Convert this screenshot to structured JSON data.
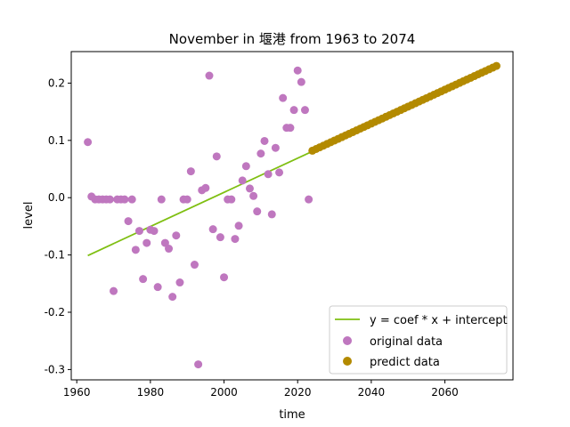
{
  "chart_data": {
    "type": "scatter",
    "title": "November in 堰港 from 1963 to 2074",
    "xlabel": "time",
    "ylabel": "level",
    "xlim": [
      1958.5,
      2078.5
    ],
    "ylim": [
      -0.318,
      0.255
    ],
    "x_ticks": [
      1960,
      1980,
      2000,
      2020,
      2040,
      2060
    ],
    "y_ticks": [
      -0.3,
      -0.2,
      -0.1,
      0.0,
      0.1,
      0.2
    ],
    "x_tick_labels": [
      "1960",
      "1980",
      "2000",
      "2020",
      "2040",
      "2060"
    ],
    "y_tick_labels": [
      "-0.3",
      "-0.2",
      "-0.1",
      "0.0",
      "0.1",
      "0.2"
    ],
    "grid": false,
    "legend_position": "lower-right",
    "legend": [
      "y = coef * x + intercept",
      "original data",
      "predict data"
    ],
    "colors": {
      "fit": "#7fbf12",
      "original": "#bf77bf",
      "predict": "#b38a00"
    },
    "fit_line": {
      "x": [
        1963,
        2074
      ],
      "y": [
        -0.101,
        0.23
      ]
    },
    "original": {
      "x": [
        1963,
        1964,
        1965,
        1966,
        1967,
        1968,
        1969,
        1970,
        1971,
        1972,
        1973,
        1974,
        1975,
        1976,
        1977,
        1978,
        1979,
        1980,
        1981,
        1982,
        1983,
        1984,
        1985,
        1986,
        1987,
        1988,
        1989,
        1990,
        1991,
        1992,
        1993,
        1994,
        1995,
        1996,
        1997,
        1998,
        1999,
        2000,
        2001,
        2002,
        2003,
        2004,
        2005,
        2006,
        2007,
        2008,
        2009,
        2010,
        2011,
        2012,
        2013,
        2014,
        2015,
        2016,
        2017,
        2018,
        2019,
        2020,
        2021,
        2022,
        2023
      ],
      "y": [
        0.097,
        0.002,
        -0.003,
        -0.003,
        -0.003,
        -0.003,
        -0.003,
        -0.163,
        -0.003,
        -0.003,
        -0.003,
        -0.041,
        -0.003,
        -0.091,
        -0.058,
        -0.142,
        -0.079,
        -0.056,
        -0.058,
        -0.156,
        -0.003,
        -0.079,
        -0.089,
        -0.173,
        -0.066,
        -0.148,
        -0.003,
        -0.003,
        0.046,
        -0.117,
        -0.291,
        0.013,
        0.017,
        0.213,
        -0.055,
        0.072,
        -0.069,
        -0.139,
        -0.003,
        -0.003,
        -0.072,
        -0.049,
        0.03,
        0.055,
        0.016,
        0.003,
        -0.024,
        0.077,
        0.099,
        0.041,
        -0.029,
        0.087,
        0.044,
        0.174,
        0.122,
        0.122,
        0.153,
        0.222,
        0.202,
        0.153,
        -0.003
      ]
    },
    "predict": {
      "x_start": 2024,
      "x_end": 2074,
      "y_start": 0.082,
      "y_end": 0.23
    }
  }
}
